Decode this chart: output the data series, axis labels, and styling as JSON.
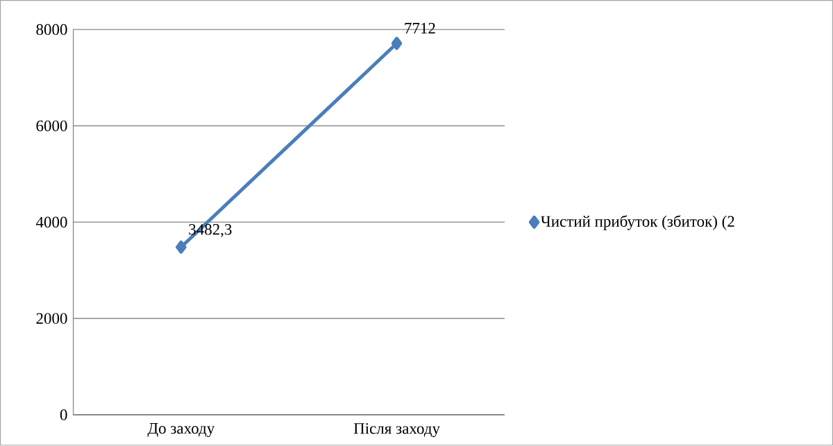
{
  "chart_data": {
    "type": "line",
    "categories": [
      "До заходу",
      "Після заходу"
    ],
    "series": [
      {
        "name": "Чистий прибуток (збиток) (2",
        "color": "#4a7ebb",
        "values": [
          3482.3,
          7712
        ],
        "value_labels": [
          "3482,3",
          "7712"
        ]
      }
    ],
    "ylim": [
      0,
      8000
    ],
    "yticks": [
      0,
      2000,
      4000,
      6000,
      8000
    ],
    "grid": "y",
    "legend": "right",
    "marker": "diamond",
    "line_style": "solid"
  }
}
